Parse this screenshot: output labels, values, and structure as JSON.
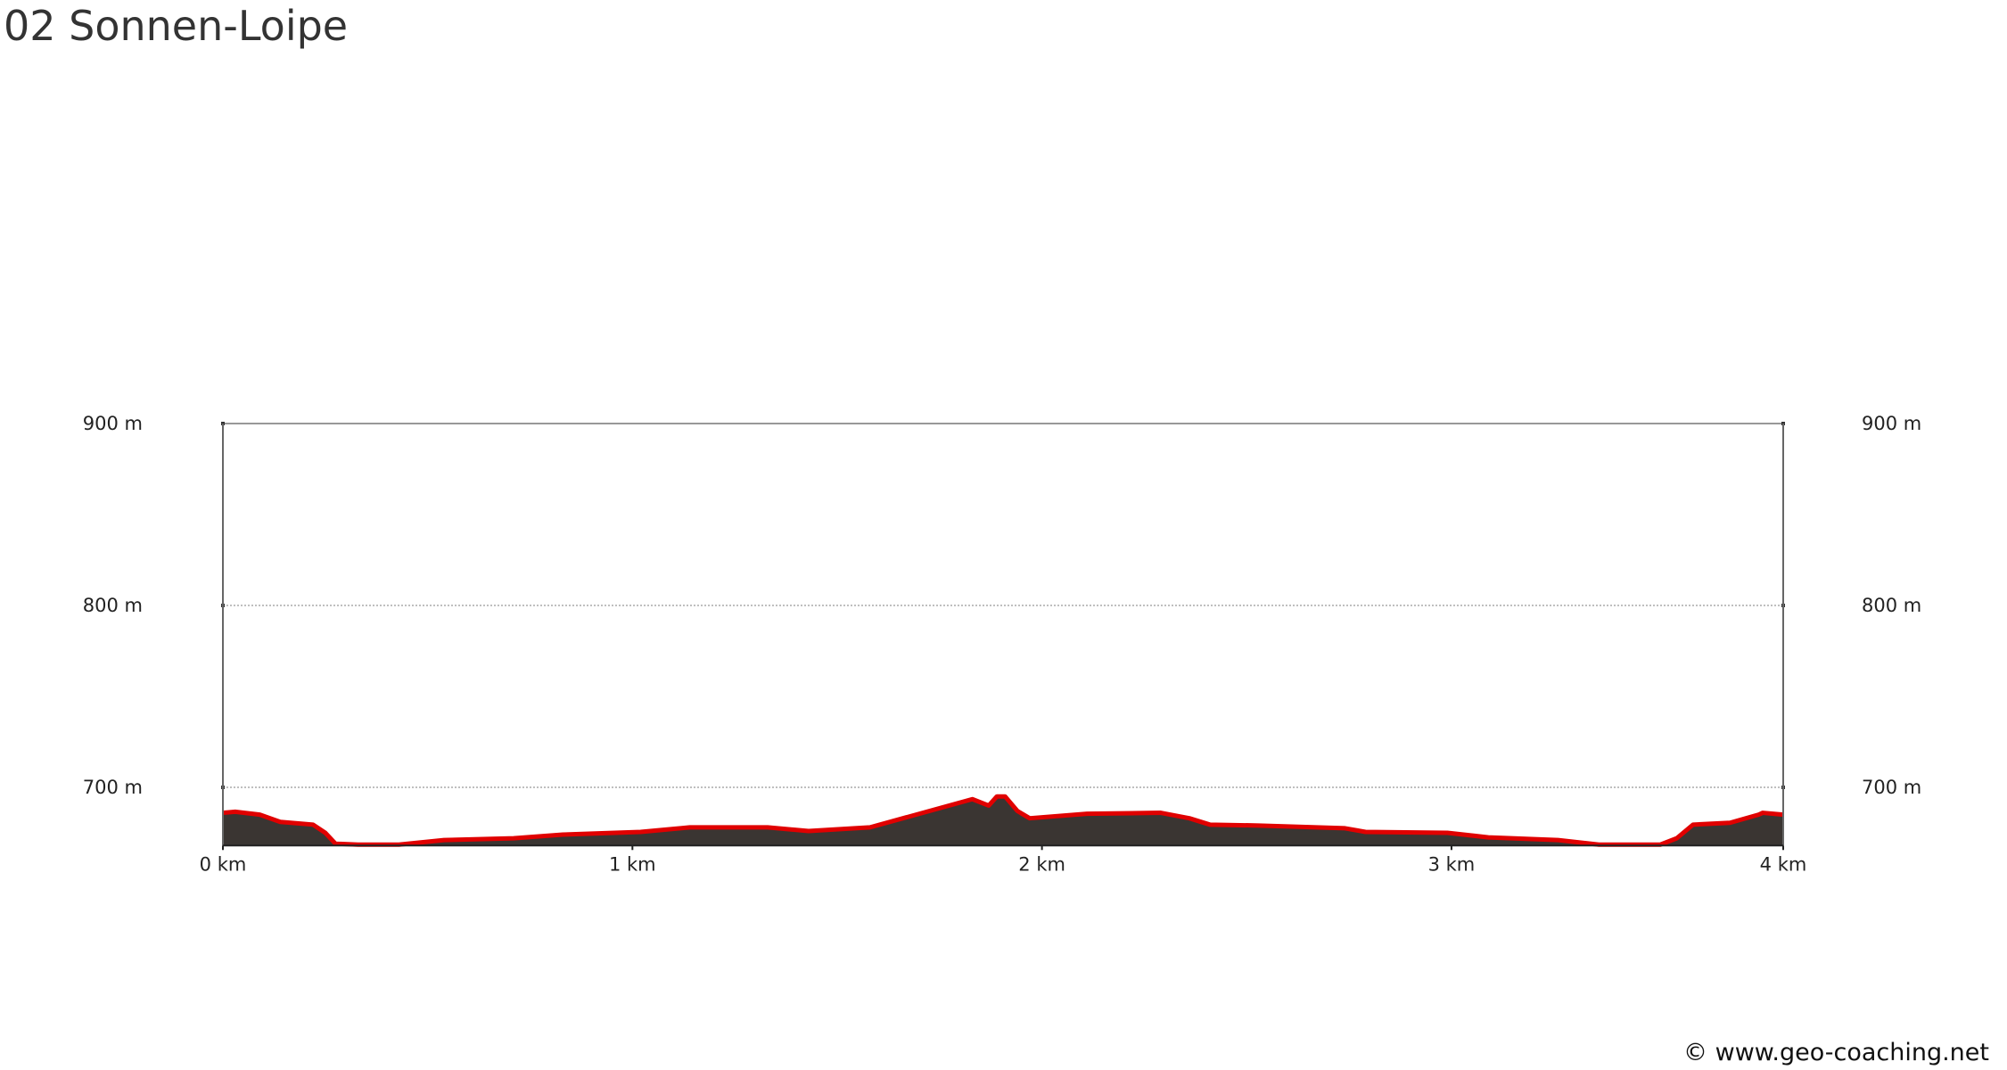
{
  "title": "02 Sonnen-Loipe",
  "footer": "© www.geo-coaching.net",
  "chart_data": {
    "type": "area",
    "title": "02 Sonnen-Loipe",
    "xlabel": "",
    "ylabel": "",
    "xlim": [
      0,
      3.81
    ],
    "ylim": [
      668,
      900
    ],
    "grid": true,
    "x_ticks": [
      {
        "value": 0,
        "label": "0 km"
      },
      {
        "value": 1,
        "label": "1 km"
      },
      {
        "value": 2,
        "label": "2 km"
      },
      {
        "value": 3,
        "label": "3 km"
      },
      {
        "value": 3.81,
        "label": "4 km"
      }
    ],
    "y_ticks": [
      {
        "value": 700,
        "label": "700 m"
      },
      {
        "value": 800,
        "label": "800 m"
      },
      {
        "value": 900,
        "label": "900 m"
      }
    ],
    "fill_color": "#3a3532",
    "line_color": "#e00000",
    "series": [
      {
        "x": [
          0,
          0.03,
          0.09,
          0.14,
          0.22,
          0.25,
          0.275,
          0.33,
          0.43,
          0.54,
          0.71,
          0.83,
          1.02,
          1.14,
          1.33,
          1.43,
          1.58,
          1.83,
          1.87,
          1.89,
          1.91,
          1.94,
          1.97,
          2.11,
          2.29,
          2.36,
          2.41,
          2.53,
          2.74,
          2.79,
          2.99,
          3.09,
          3.26,
          3.36,
          3.51,
          3.55,
          3.59,
          3.68,
          3.75,
          3.76,
          3.81
        ],
        "y": [
          686,
          686.6,
          685,
          681,
          679.5,
          675,
          669,
          668.5,
          668.5,
          671,
          672,
          674,
          675.5,
          678,
          678,
          676,
          678,
          693.5,
          690,
          695,
          695,
          687,
          683,
          685.5,
          686,
          683,
          679.5,
          679,
          677.5,
          675.5,
          675,
          672.5,
          671,
          668.5,
          668.5,
          672,
          679.5,
          680.5,
          685,
          686,
          685
        ]
      }
    ]
  }
}
